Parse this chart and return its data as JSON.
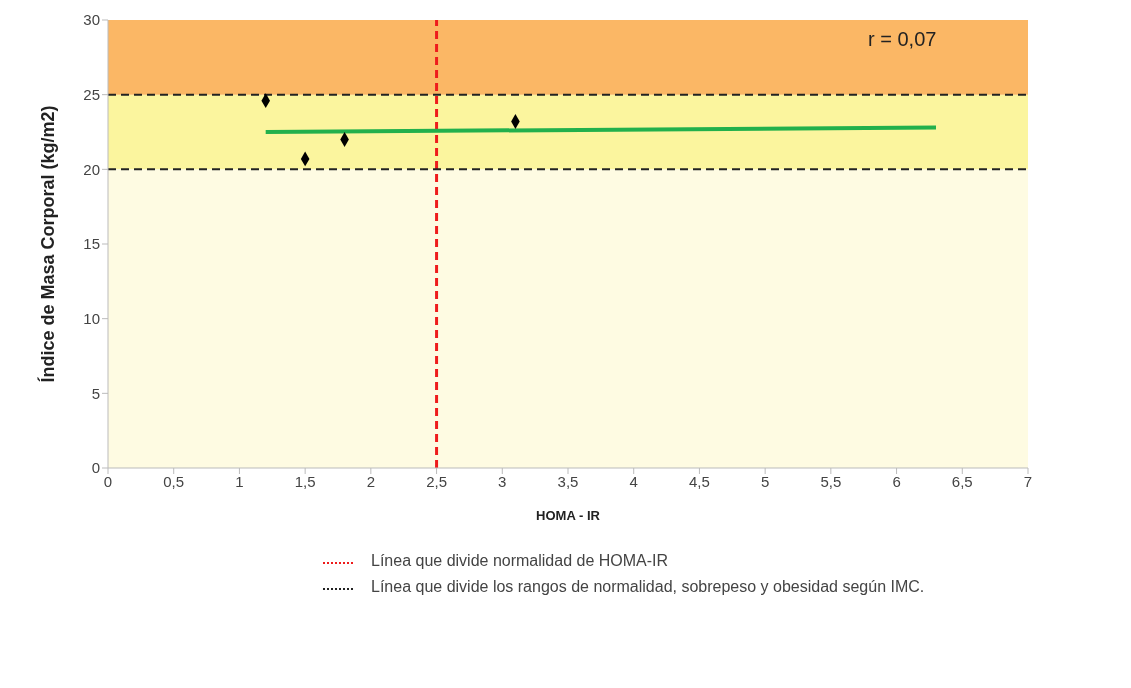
{
  "chart_data": {
    "type": "scatter",
    "xlabel": "HOMA - IR",
    "ylabel": "Índice de Masa Corporal (kg/m2)",
    "xlim": [
      0,
      7
    ],
    "xticks": [
      0,
      {
        "value": 0.5,
        "label": "0,5"
      },
      1,
      {
        "value": 1.5,
        "label": "1,5"
      },
      2,
      {
        "value": 2.5,
        "label": "2,5"
      },
      3,
      {
        "value": 3.5,
        "label": "3,5"
      },
      4,
      {
        "value": 4.5,
        "label": "4,5"
      },
      5,
      {
        "value": 5.5,
        "label": "5,5"
      },
      6,
      {
        "value": 6.5,
        "label": "6,5"
      },
      7
    ],
    "ylim": [
      0,
      30
    ],
    "yticks": [
      0,
      5,
      10,
      15,
      20,
      25,
      30
    ],
    "grid": false,
    "legend": false,
    "x": [
      1.2,
      1.5,
      1.8,
      3.1
    ],
    "series": [
      {
        "color": "#000000",
        "marker": "diamond",
        "values": [
          24.6,
          20.7,
          22.0,
          23.2
        ]
      },
      {
        "type": "line",
        "color": "#22b04c",
        "marker": "none",
        "x": [
          1.2,
          6.3
        ],
        "values": [
          22.5,
          22.8
        ]
      }
    ],
    "bands": [
      {
        "axis": "y",
        "from": 0,
        "to": 20,
        "color": "#fefbe2"
      },
      {
        "axis": "y",
        "from": 20,
        "to": 25,
        "color": "#fbf59e"
      },
      {
        "axis": "y",
        "from": 25,
        "to": 30,
        "color": "#fbb765"
      }
    ],
    "ref_lines": [
      {
        "axis": "x",
        "value": 2.5,
        "color": "#ee1c1c",
        "line_style": "dashed"
      },
      {
        "axis": "y",
        "value": 20,
        "color": "#222222",
        "line_style": "dashed"
      },
      {
        "axis": "y",
        "value": 25,
        "color": "#222222",
        "line_style": "dashed"
      }
    ],
    "annotations": [
      "r = 0,07",
      "Línea  que divide normalidad de HOMA-IR",
      "Línea que  divide los rangos de normalidad, sobrepeso y obesidad según IMC."
    ]
  }
}
